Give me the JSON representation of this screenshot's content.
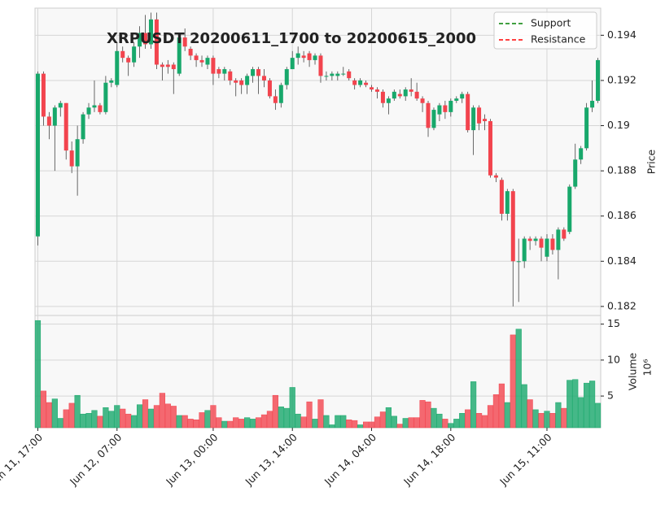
{
  "chart_data": {
    "type": "candlestick",
    "title": "XRPUSDT 20200611_1700 to 20200615_2000",
    "categories": [
      "Jun 11, 17:00",
      null,
      null,
      null,
      null,
      null,
      null,
      null,
      null,
      null,
      null,
      null,
      null,
      null,
      "Jun 12, 07:00",
      null,
      null,
      null,
      null,
      null,
      null,
      null,
      null,
      null,
      null,
      null,
      null,
      null,
      null,
      null,
      null,
      "Jun 13, 00:00",
      null,
      null,
      null,
      null,
      null,
      null,
      null,
      null,
      null,
      null,
      null,
      null,
      null,
      "Jun 13, 14:00",
      null,
      null,
      null,
      null,
      null,
      null,
      null,
      null,
      null,
      null,
      null,
      null,
      null,
      "Jun 14, 04:00",
      null,
      null,
      null,
      null,
      null,
      null,
      null,
      null,
      null,
      null,
      null,
      null,
      null,
      "Jun 14, 18:00",
      null,
      null,
      null,
      null,
      null,
      null,
      null,
      null,
      null,
      null,
      null,
      null,
      null,
      null,
      null,
      null,
      "Jun 15, 11:00",
      null,
      null,
      null,
      null,
      null,
      null,
      null,
      null,
      null
    ],
    "open": [
      0.1851,
      0.1923,
      0.1904,
      0.19,
      0.1908,
      0.191,
      0.1889,
      0.1882,
      0.1894,
      0.1905,
      0.1908,
      0.1909,
      0.1906,
      0.1919,
      0.1918,
      0.1933,
      0.193,
      0.1928,
      0.1935,
      0.1941,
      0.1936,
      0.1947,
      0.1927,
      0.1927,
      0.1927,
      0.1923,
      0.1939,
      0.1934,
      0.1931,
      0.1929,
      0.1927,
      0.193,
      0.1925,
      0.1923,
      0.1924,
      0.192,
      0.192,
      0.1918,
      0.1922,
      0.1925,
      0.1922,
      0.192,
      0.1913,
      0.191,
      0.1918,
      0.1925,
      0.193,
      0.1931,
      0.1932,
      0.1929,
      0.1931,
      0.1922,
      0.1922,
      0.1922,
      0.1923,
      0.1924,
      0.192,
      0.1918,
      0.1919,
      0.1917,
      0.1916,
      0.1915,
      0.191,
      0.1912,
      0.1914,
      0.1913,
      0.1916,
      0.1915,
      0.1912,
      0.191,
      0.1899,
      0.1905,
      0.1909,
      0.1906,
      0.1911,
      0.1912,
      0.1914,
      0.1898,
      0.1908,
      0.1903,
      0.1902,
      0.1878,
      0.1876,
      0.1861,
      0.1871,
      0.184,
      0.184,
      0.185,
      0.1849,
      0.185,
      0.1842,
      0.185,
      0.1845,
      0.1854,
      0.1853,
      0.1873,
      0.1885,
      0.189,
      0.1908,
      0.1911
    ],
    "high": [
      0.1924,
      0.1924,
      0.1906,
      0.1909,
      0.1911,
      0.191,
      0.1893,
      0.19,
      0.1906,
      0.191,
      0.192,
      0.191,
      0.1922,
      0.1921,
      0.1937,
      0.1935,
      0.1931,
      0.1937,
      0.1944,
      0.1949,
      0.195,
      0.195,
      0.1928,
      0.1929,
      0.1928,
      0.194,
      0.1943,
      0.1935,
      0.1932,
      0.1931,
      0.1931,
      0.1931,
      0.1926,
      0.1926,
      0.1925,
      0.1921,
      0.1921,
      0.1923,
      0.1926,
      0.1926,
      0.1925,
      0.1921,
      0.1916,
      0.1919,
      0.1926,
      0.1933,
      0.1935,
      0.1933,
      0.1933,
      0.1932,
      0.1932,
      0.1924,
      0.1924,
      0.1924,
      0.1926,
      0.1925,
      0.1921,
      0.1921,
      0.192,
      0.1918,
      0.1917,
      0.1916,
      0.1913,
      0.1916,
      0.1916,
      0.1917,
      0.1921,
      0.1919,
      0.1913,
      0.1911,
      0.1908,
      0.191,
      0.1911,
      0.1912,
      0.1913,
      0.1915,
      0.1915,
      0.1909,
      0.1909,
      0.1905,
      0.1903,
      0.1879,
      0.1877,
      0.1872,
      0.1872,
      0.185,
      0.1851,
      0.1851,
      0.1851,
      0.1851,
      0.1852,
      0.1852,
      0.1855,
      0.1855,
      0.1874,
      0.1892,
      0.1891,
      0.191,
      0.192,
      0.193
    ],
    "low": [
      0.1847,
      0.19,
      0.1894,
      0.188,
      0.1904,
      0.1885,
      0.1879,
      0.1869,
      0.1892,
      0.1903,
      0.1906,
      0.1905,
      0.1905,
      0.1917,
      0.1917,
      0.1928,
      0.1922,
      0.1926,
      0.193,
      0.1934,
      0.1934,
      0.1925,
      0.192,
      0.1923,
      0.1914,
      0.1922,
      0.1933,
      0.1929,
      0.1926,
      0.1926,
      0.1925,
      0.1918,
      0.1921,
      0.192,
      0.1918,
      0.1913,
      0.1914,
      0.1914,
      0.1919,
      0.1914,
      0.1917,
      0.1912,
      0.1907,
      0.1908,
      0.1916,
      0.1925,
      0.1927,
      0.1928,
      0.1926,
      0.1927,
      0.1919,
      0.192,
      0.192,
      0.192,
      0.1922,
      0.192,
      0.1916,
      0.1917,
      0.1917,
      0.1915,
      0.1912,
      0.1908,
      0.1905,
      0.1911,
      0.1912,
      0.1911,
      0.1913,
      0.1911,
      0.1906,
      0.1895,
      0.1898,
      0.1902,
      0.1903,
      0.1904,
      0.191,
      0.191,
      0.1897,
      0.1887,
      0.1898,
      0.1898,
      0.1877,
      0.1875,
      0.1858,
      0.1858,
      0.182,
      0.1822,
      0.1837,
      0.1845,
      0.1847,
      0.184,
      0.184,
      0.1843,
      0.1832,
      0.1849,
      0.1852,
      0.1872,
      0.1883,
      0.1889,
      0.1906,
      0.191
    ],
    "close": [
      0.1923,
      0.1904,
      0.19,
      0.1908,
      0.191,
      0.1889,
      0.1882,
      0.1894,
      0.1905,
      0.1908,
      0.1909,
      0.1906,
      0.1919,
      0.192,
      0.1933,
      0.193,
      0.1928,
      0.1935,
      0.1941,
      0.1936,
      0.1947,
      0.1927,
      0.1926,
      0.1926,
      0.1925,
      0.1939,
      0.1935,
      0.1931,
      0.1929,
      0.1928,
      0.193,
      0.1923,
      0.1923,
      0.1925,
      0.192,
      0.1919,
      0.1918,
      0.1922,
      0.1925,
      0.1922,
      0.192,
      0.1913,
      0.191,
      0.1918,
      0.1925,
      0.193,
      0.1932,
      0.193,
      0.1929,
      0.1931,
      0.1922,
      0.1922,
      0.1923,
      0.1923,
      0.1923,
      0.1921,
      0.1918,
      0.192,
      0.1918,
      0.1916,
      0.1915,
      0.191,
      0.1912,
      0.1915,
      0.1913,
      0.1916,
      0.1915,
      0.1912,
      0.191,
      0.1899,
      0.1907,
      0.1909,
      0.1906,
      0.1911,
      0.1912,
      0.1914,
      0.1898,
      0.1908,
      0.1901,
      0.1902,
      0.1878,
      0.1877,
      0.1861,
      0.1871,
      0.184,
      0.184,
      0.185,
      0.1849,
      0.185,
      0.1846,
      0.185,
      0.1845,
      0.1854,
      0.185,
      0.1873,
      0.1885,
      0.189,
      0.1908,
      0.1911,
      0.1929
    ],
    "volume": [
      15.5,
      5.7,
      4.1,
      4.6,
      1.9,
      3.1,
      4.0,
      5.1,
      2.5,
      2.6,
      3.0,
      2.2,
      3.4,
      2.9,
      3.7,
      3.2,
      2.5,
      2.3,
      3.8,
      4.5,
      3.2,
      3.7,
      5.4,
      3.9,
      3.6,
      2.3,
      2.3,
      1.8,
      1.7,
      2.7,
      3.0,
      3.7,
      2.0,
      1.5,
      1.5,
      2.0,
      1.8,
      2.0,
      1.8,
      2.0,
      2.4,
      2.9,
      5.1,
      3.5,
      3.3,
      6.2,
      2.5,
      2.1,
      4.2,
      1.8,
      4.5,
      2.3,
      1.0,
      2.3,
      2.3,
      1.7,
      1.6,
      1.0,
      1.4,
      1.4,
      2.1,
      2.8,
      3.4,
      2.2,
      1.1,
      1.9,
      2.0,
      2.0,
      4.4,
      4.2,
      3.3,
      2.5,
      1.8,
      1.2,
      1.8,
      2.6,
      3.1,
      7.0,
      2.6,
      2.3,
      3.7,
      5.2,
      6.7,
      4.1,
      13.5,
      14.3,
      6.6,
      4.5,
      3.1,
      2.6,
      2.9,
      2.6,
      4.1,
      3.3,
      7.2,
      7.3,
      4.8,
      6.8,
      7.1,
      4.0
    ],
    "up_color": "#18a86b",
    "down_color": "#f2444e",
    "ylim": [
      0.1816,
      0.1952
    ],
    "yticks": [
      0.182,
      0.184,
      0.186,
      0.188,
      0.19,
      0.192,
      0.194
    ],
    "ylabel": "Price",
    "volume_ylim": [
      0.6,
      16.2
    ],
    "volume_yticks": [
      5,
      10,
      15
    ],
    "volume_ylabel": "Volume",
    "volume_scale": "10⁶",
    "grid": true,
    "legend_entries": [
      {
        "name": "Support",
        "color": "#008000"
      },
      {
        "name": "Resistance",
        "color": "#ff0000"
      }
    ],
    "legend_position": "upper right"
  }
}
